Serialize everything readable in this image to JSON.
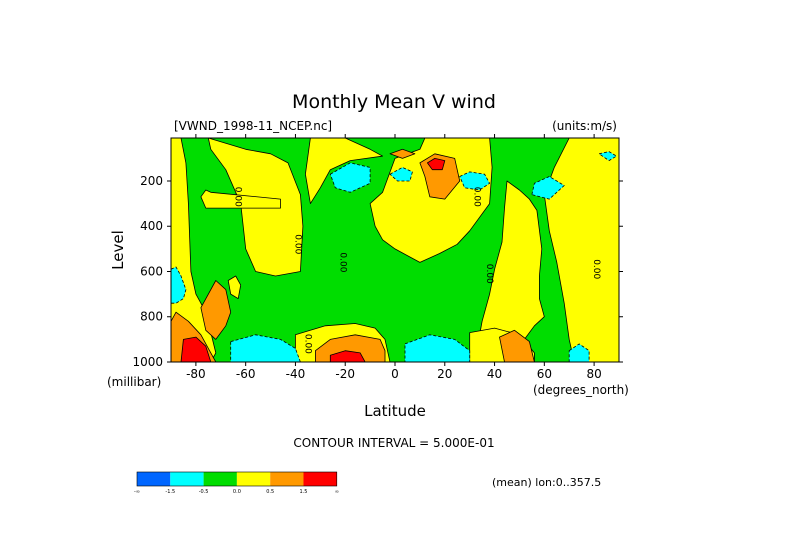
{
  "chart_data": {
    "type": "heatmap",
    "title": "Monthly Mean V wind",
    "dataset_label": "[VWND_1998-11_NCEP.nc]",
    "units_label": "(units:m/s)",
    "xlabel": "Latitude",
    "x_units": "(degrees_north)",
    "ylabel": "Level",
    "y_units": "(millibar)",
    "x_ticks": [
      -80,
      -60,
      -40,
      -20,
      0,
      20,
      40,
      60,
      80
    ],
    "y_ticks": [
      200,
      400,
      600,
      800,
      1000
    ],
    "xlim": [
      -90,
      90
    ],
    "ylim": [
      1000,
      10
    ],
    "y_inverted": true,
    "contour_interval_text": "CONTOUR INTERVAL = 5.000E-01",
    "mean_text": "(mean) lon:0..357.5",
    "colorbar": {
      "colors": [
        "#0066ff",
        "#00ffff",
        "#00dd00",
        "#ffff00",
        "#ff9900",
        "#ff0000"
      ],
      "labels": [
        "-∞",
        "-1.5",
        "-0.5",
        "0.0",
        "0.5",
        "1.5",
        "∞"
      ]
    },
    "contour_labels": [
      {
        "text": "0.00",
        "lat": -64,
        "lev": 270
      },
      {
        "text": "0.00",
        "lat": -40,
        "lev": 480
      },
      {
        "text": "0.00",
        "lat": -22,
        "lev": 560
      },
      {
        "text": "0.00",
        "lat": -36,
        "lev": 920
      },
      {
        "text": "0.00",
        "lat": 32,
        "lev": 270
      },
      {
        "text": "0.00",
        "lat": 37,
        "lev": 610
      },
      {
        "text": "0.00",
        "lat": 80,
        "lev": 590
      }
    ],
    "regions": [
      {
        "cls": "positive",
        "pts": [
          [
            -90,
            10
          ],
          [
            -86,
            10
          ],
          [
            -84,
            120
          ],
          [
            -83,
            300
          ],
          [
            -82,
            600
          ],
          [
            -80,
            700
          ],
          [
            -76,
            780
          ],
          [
            -72,
            960
          ],
          [
            -74,
            1000
          ],
          [
            -90,
            1000
          ]
        ]
      },
      {
        "cls": "positive",
        "pts": [
          [
            -75,
            10
          ],
          [
            -60,
            60
          ],
          [
            -50,
            80
          ],
          [
            -43,
            120
          ],
          [
            -38,
            260
          ],
          [
            -37,
            400
          ],
          [
            -38,
            600
          ],
          [
            -48,
            620
          ],
          [
            -56,
            600
          ],
          [
            -60,
            500
          ],
          [
            -62,
            300
          ],
          [
            -68,
            150
          ],
          [
            -74,
            60
          ]
        ]
      },
      {
        "cls": "positive",
        "pts": [
          [
            -34,
            10
          ],
          [
            -20,
            10
          ],
          [
            -10,
            60
          ],
          [
            -5,
            90
          ],
          [
            -18,
            110
          ],
          [
            -26,
            150
          ],
          [
            -30,
            230
          ],
          [
            -34,
            300
          ],
          [
            -36,
            170
          ]
        ]
      },
      {
        "cls": "positive",
        "pts": [
          [
            -10,
            300
          ],
          [
            -5,
            250
          ],
          [
            0,
            100
          ],
          [
            10,
            60
          ],
          [
            12,
            10
          ],
          [
            38,
            10
          ],
          [
            39,
            140
          ],
          [
            38,
            300
          ],
          [
            30,
            420
          ],
          [
            25,
            480
          ],
          [
            18,
            520
          ],
          [
            10,
            560
          ],
          [
            0,
            500
          ],
          [
            -5,
            460
          ],
          [
            -8,
            400
          ]
        ]
      },
      {
        "cls": "positive",
        "pts": [
          [
            45,
            200
          ],
          [
            50,
            240
          ],
          [
            54,
            280
          ],
          [
            57,
            330
          ],
          [
            59,
            500
          ],
          [
            58,
            620
          ],
          [
            58,
            720
          ],
          [
            60,
            800
          ],
          [
            56,
            840
          ],
          [
            52,
            900
          ],
          [
            45,
            1000
          ],
          [
            32,
            1000
          ],
          [
            35,
            820
          ],
          [
            38,
            700
          ],
          [
            40,
            590
          ],
          [
            43,
            470
          ],
          [
            44,
            320
          ]
        ]
      },
      {
        "cls": "positive",
        "pts": [
          [
            70,
            10
          ],
          [
            90,
            10
          ],
          [
            90,
            1000
          ],
          [
            72,
            1000
          ],
          [
            70,
            900
          ],
          [
            68,
            740
          ],
          [
            65,
            560
          ],
          [
            62,
            420
          ],
          [
            60,
            260
          ],
          [
            64,
            140
          ]
        ]
      },
      {
        "cls": "positive",
        "pts": [
          [
            -40,
            880
          ],
          [
            -28,
            840
          ],
          [
            -16,
            830
          ],
          [
            -8,
            850
          ],
          [
            -4,
            900
          ],
          [
            -2,
            1000
          ],
          [
            -40,
            1000
          ]
        ]
      },
      {
        "cls": "positive",
        "pts": [
          [
            30,
            870
          ],
          [
            40,
            850
          ],
          [
            50,
            880
          ],
          [
            56,
            960
          ],
          [
            56,
            1000
          ],
          [
            30,
            1000
          ]
        ]
      },
      {
        "cls": "positive",
        "pts": [
          [
            -78,
            270
          ],
          [
            -76,
            240
          ],
          [
            -74,
            250
          ],
          [
            -46,
            280
          ],
          [
            -46,
            320
          ],
          [
            -76,
            320
          ]
        ]
      },
      {
        "cls": "positive",
        "pts": [
          [
            -67,
            640
          ],
          [
            -64,
            620
          ],
          [
            -62,
            660
          ],
          [
            -63,
            720
          ],
          [
            -66,
            700
          ]
        ]
      },
      {
        "cls": "negative",
        "pts": [
          [
            -90,
            590
          ],
          [
            -88,
            580
          ],
          [
            -86,
            620
          ],
          [
            -84,
            680
          ],
          [
            -85,
            720
          ],
          [
            -88,
            740
          ],
          [
            -90,
            740
          ]
        ]
      },
      {
        "cls": "negative",
        "pts": [
          [
            -66,
            910
          ],
          [
            -56,
            880
          ],
          [
            -46,
            900
          ],
          [
            -40,
            940
          ],
          [
            -38,
            1000
          ],
          [
            -66,
            1000
          ]
        ]
      },
      {
        "cls": "negative",
        "pts": [
          [
            4,
            920
          ],
          [
            14,
            880
          ],
          [
            24,
            900
          ],
          [
            30,
            950
          ],
          [
            30,
            1000
          ],
          [
            4,
            1000
          ]
        ]
      },
      {
        "cls": "negative",
        "pts": [
          [
            -26,
            170
          ],
          [
            -18,
            120
          ],
          [
            -10,
            140
          ],
          [
            -10,
            210
          ],
          [
            -18,
            250
          ],
          [
            -24,
            230
          ]
        ]
      },
      {
        "cls": "negative",
        "pts": [
          [
            -2,
            170
          ],
          [
            3,
            140
          ],
          [
            7,
            160
          ],
          [
            6,
            200
          ],
          [
            1,
            200
          ]
        ]
      },
      {
        "cls": "negative",
        "pts": [
          [
            26,
            180
          ],
          [
            30,
            160
          ],
          [
            36,
            170
          ],
          [
            38,
            210
          ],
          [
            34,
            240
          ],
          [
            28,
            230
          ]
        ]
      },
      {
        "cls": "negative",
        "pts": [
          [
            55,
            260
          ],
          [
            56,
            210
          ],
          [
            62,
            180
          ],
          [
            68,
            220
          ],
          [
            62,
            280
          ]
        ]
      },
      {
        "cls": "negative",
        "pts": [
          [
            70,
            950
          ],
          [
            74,
            920
          ],
          [
            78,
            950
          ],
          [
            78,
            1000
          ],
          [
            70,
            1000
          ]
        ]
      },
      {
        "cls": "negative",
        "pts": [
          [
            82,
            80
          ],
          [
            86,
            70
          ],
          [
            89,
            90
          ],
          [
            86,
            110
          ]
        ]
      },
      {
        "cls": "orange",
        "pts": [
          [
            -78,
            760
          ],
          [
            -72,
            640
          ],
          [
            -68,
            680
          ],
          [
            -66,
            780
          ],
          [
            -68,
            840
          ],
          [
            -72,
            900
          ],
          [
            -76,
            860
          ]
        ]
      },
      {
        "cls": "orange",
        "pts": [
          [
            -88,
            780
          ],
          [
            -83,
            820
          ],
          [
            -78,
            880
          ],
          [
            -74,
            960
          ],
          [
            -72,
            1000
          ],
          [
            -90,
            1000
          ],
          [
            -90,
            820
          ]
        ]
      },
      {
        "cls": "orange",
        "pts": [
          [
            -32,
            950
          ],
          [
            -26,
            900
          ],
          [
            -16,
            880
          ],
          [
            -6,
            900
          ],
          [
            -4,
            950
          ],
          [
            -4,
            1000
          ],
          [
            -32,
            1000
          ]
        ]
      },
      {
        "cls": "orange",
        "pts": [
          [
            42,
            890
          ],
          [
            48,
            860
          ],
          [
            54,
            910
          ],
          [
            56,
            1000
          ],
          [
            44,
            1000
          ]
        ]
      },
      {
        "cls": "orange",
        "pts": [
          [
            10,
            120
          ],
          [
            16,
            80
          ],
          [
            24,
            100
          ],
          [
            26,
            200
          ],
          [
            20,
            280
          ],
          [
            14,
            270
          ],
          [
            12,
            180
          ]
        ]
      },
      {
        "cls": "orange",
        "pts": [
          [
            -2,
            80
          ],
          [
            3,
            60
          ],
          [
            8,
            80
          ],
          [
            3,
            100
          ]
        ]
      },
      {
        "cls": "red",
        "pts": [
          [
            -85,
            900
          ],
          [
            -80,
            890
          ],
          [
            -76,
            930
          ],
          [
            -74,
            1000
          ],
          [
            -86,
            1000
          ]
        ]
      },
      {
        "cls": "red",
        "pts": [
          [
            -26,
            970
          ],
          [
            -20,
            950
          ],
          [
            -14,
            960
          ],
          [
            -12,
            1000
          ],
          [
            -26,
            1000
          ]
        ]
      },
      {
        "cls": "red",
        "pts": [
          [
            13,
            120
          ],
          [
            16,
            100
          ],
          [
            20,
            110
          ],
          [
            19,
            150
          ],
          [
            15,
            150
          ]
        ]
      }
    ]
  }
}
